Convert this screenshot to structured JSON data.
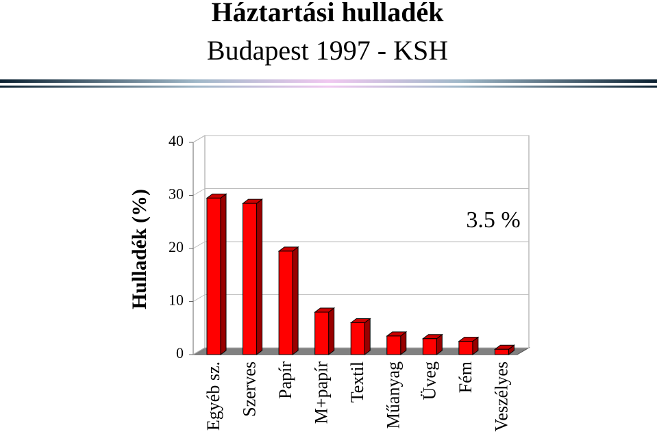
{
  "chart_data": {
    "type": "bar3d",
    "title": "Háztartási hulladék",
    "subtitle": "Budapest 1997 - KSH",
    "y_label": "Hulladék (%)",
    "categories": [
      "Egyéb sz.",
      "Szerves",
      "Papír",
      "M+papír",
      "Textil",
      "Műanyag",
      "Üveg",
      "Fém",
      "Veszélyes"
    ],
    "values": [
      29.5,
      28.5,
      19.5,
      8,
      6,
      3.5,
      3,
      2.5,
      1
    ],
    "color": "#ff0000",
    "ylim": [
      0,
      40
    ],
    "yticks": [
      0,
      10,
      20,
      30,
      40
    ],
    "grid": true,
    "annotation": "3.5 %"
  }
}
